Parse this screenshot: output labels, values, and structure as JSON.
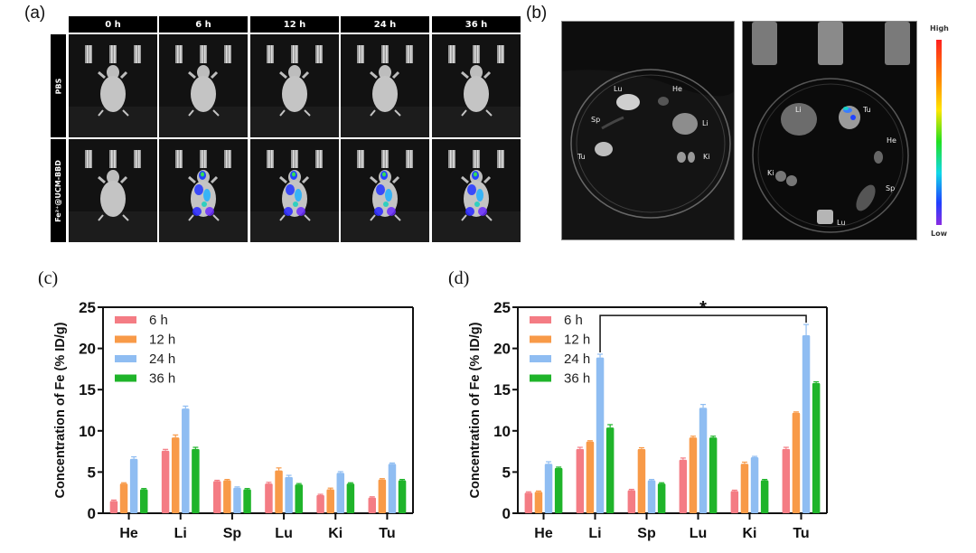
{
  "panel_a": {
    "label": "(a)",
    "time_points": [
      "0 h",
      "6 h",
      "12 h",
      "24 h",
      "36 h"
    ],
    "groups": [
      "PBS",
      "Fe²⁺@UCM-BBD"
    ],
    "signal_by_time": {
      "PBS": [
        0,
        0,
        0,
        0,
        0
      ],
      "Fe": [
        0,
        1,
        1,
        1,
        1
      ]
    }
  },
  "panel_b": {
    "label": "(b)",
    "left_image_labels": [
      "Lu",
      "He",
      "Sp",
      "Li",
      "Tu",
      "Ki"
    ],
    "right_image_labels": [
      "Li",
      "Tu",
      "He",
      "Ki",
      "Sp",
      "Lu"
    ],
    "colorbar": {
      "high": "High",
      "low": "Low"
    }
  },
  "chart_data": [
    {
      "id": "c",
      "panel_label": "(c)",
      "type": "bar",
      "categories": [
        "He",
        "Li",
        "Sp",
        "Lu",
        "Ki",
        "Tu"
      ],
      "series": [
        {
          "name": "6 h",
          "color": "#f47c84",
          "values": [
            1.5,
            7.6,
            3.9,
            3.6,
            2.2,
            1.9
          ],
          "errors": [
            0.1,
            0.15,
            0.1,
            0.15,
            0.1,
            0.1
          ]
        },
        {
          "name": "12 h",
          "color": "#f89a48",
          "values": [
            3.6,
            9.2,
            4.0,
            5.2,
            2.9,
            4.1
          ],
          "errors": [
            0.1,
            0.3,
            0.1,
            0.3,
            0.15,
            0.1
          ]
        },
        {
          "name": "24 h",
          "color": "#8fbdf2",
          "values": [
            6.6,
            12.7,
            3.1,
            4.4,
            4.9,
            6.0
          ],
          "errors": [
            0.25,
            0.3,
            0.1,
            0.2,
            0.15,
            0.1
          ]
        },
        {
          "name": "36 h",
          "color": "#1fb42a",
          "values": [
            2.9,
            7.8,
            2.9,
            3.5,
            3.6,
            4.0
          ],
          "errors": [
            0.1,
            0.2,
            0.1,
            0.1,
            0.1,
            0.1
          ]
        }
      ],
      "ylabel": "Concentration of Fe (% ID/g)",
      "xlabel": "",
      "ylim": [
        0,
        25
      ],
      "yticks": [
        0,
        5,
        10,
        15,
        20,
        25
      ],
      "legend_position": "top-left",
      "annotations": []
    },
    {
      "id": "d",
      "panel_label": "(d)",
      "type": "bar",
      "categories": [
        "He",
        "Li",
        "Sp",
        "Lu",
        "Ki",
        "Tu"
      ],
      "series": [
        {
          "name": "6 h",
          "color": "#f47c84",
          "values": [
            2.5,
            7.8,
            2.8,
            6.5,
            2.7,
            7.8
          ],
          "errors": [
            0.1,
            0.2,
            0.1,
            0.2,
            0.1,
            0.2
          ]
        },
        {
          "name": "12 h",
          "color": "#f89a48",
          "values": [
            2.6,
            8.7,
            7.8,
            9.2,
            6.0,
            12.2
          ],
          "errors": [
            0.1,
            0.1,
            0.15,
            0.15,
            0.2,
            0.1
          ]
        },
        {
          "name": "24 h",
          "color": "#8fbdf2",
          "values": [
            6.0,
            18.9,
            4.0,
            12.8,
            6.8,
            21.6
          ],
          "errors": [
            0.25,
            0.4,
            0.1,
            0.4,
            0.1,
            1.3
          ]
        },
        {
          "name": "36 h",
          "color": "#1fb42a",
          "values": [
            5.5,
            10.4,
            3.6,
            9.2,
            4.0,
            15.8
          ],
          "errors": [
            0.1,
            0.35,
            0.1,
            0.15,
            0.1,
            0.15
          ]
        }
      ],
      "ylabel": "Concentration of Fe (% ID/g)",
      "xlabel": "",
      "ylim": [
        0,
        25
      ],
      "yticks": [
        0,
        5,
        10,
        15,
        20,
        25
      ],
      "legend_position": "top-left",
      "annotations": [
        {
          "type": "significance",
          "text": "*",
          "from": {
            "category": "Li",
            "series": "24 h"
          },
          "to": {
            "category": "Tu",
            "series": "24 h"
          },
          "level": 24
        }
      ]
    }
  ]
}
